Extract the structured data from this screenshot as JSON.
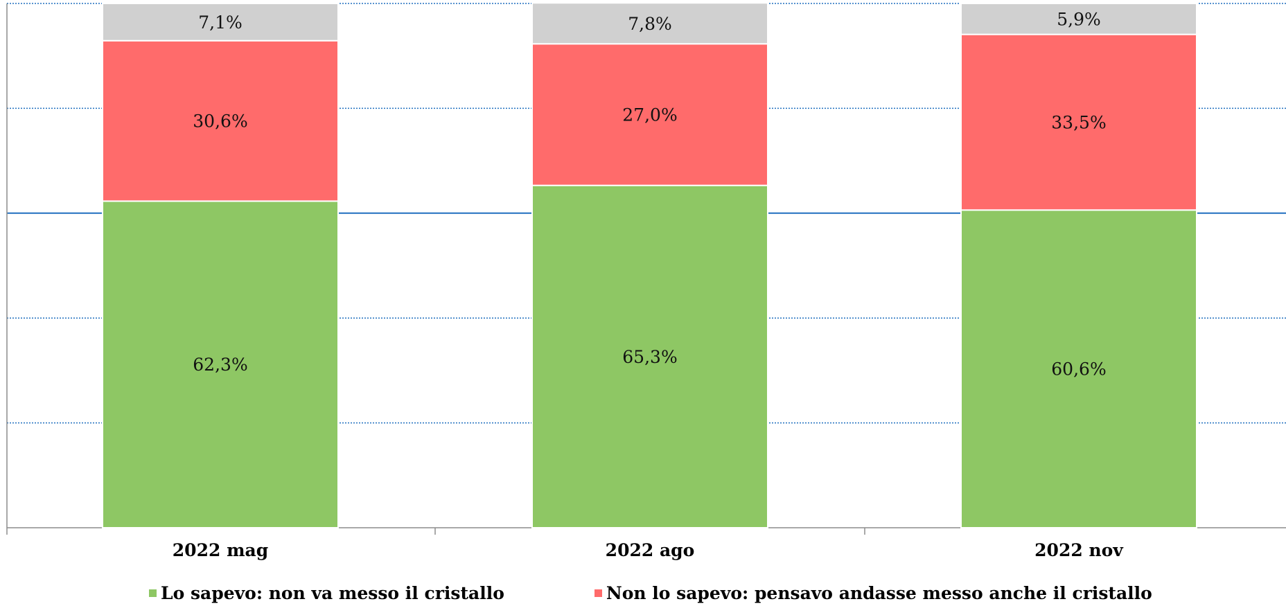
{
  "chart_data": {
    "type": "bar",
    "stacked": true,
    "percent_stacked": true,
    "categories": [
      "2022 mag",
      "2022 ago",
      "2022 nov"
    ],
    "series": [
      {
        "name": "Lo sapevo: non va messo il cristallo",
        "color": "#8EC764",
        "values": [
          62.3,
          65.3,
          60.6
        ],
        "labels": [
          "62,3%",
          "65,3%",
          "60,6%"
        ]
      },
      {
        "name": "Non lo sapevo: pensavo andasse messo anche il cristallo",
        "color": "#FF6B6B",
        "values": [
          30.6,
          27.0,
          33.5
        ],
        "labels": [
          "30,6%",
          "27,0%",
          "33,5%"
        ]
      },
      {
        "name": "",
        "color": "#D0D0D0",
        "values": [
          7.1,
          7.8,
          5.9
        ],
        "labels": [
          "7,1%",
          "7,8%",
          "5,9%"
        ]
      }
    ],
    "ylim": [
      0,
      100
    ],
    "grid": true,
    "legend_position": "bottom",
    "gridline_color": "#1F6FBF"
  },
  "legend": {
    "items": [
      {
        "label": "Lo sapevo: non va messo il cristallo",
        "color": "#8EC764"
      },
      {
        "label": "Non lo sapevo: pensavo andasse messo anche il cristallo",
        "color": "#FF6B6B"
      }
    ]
  }
}
